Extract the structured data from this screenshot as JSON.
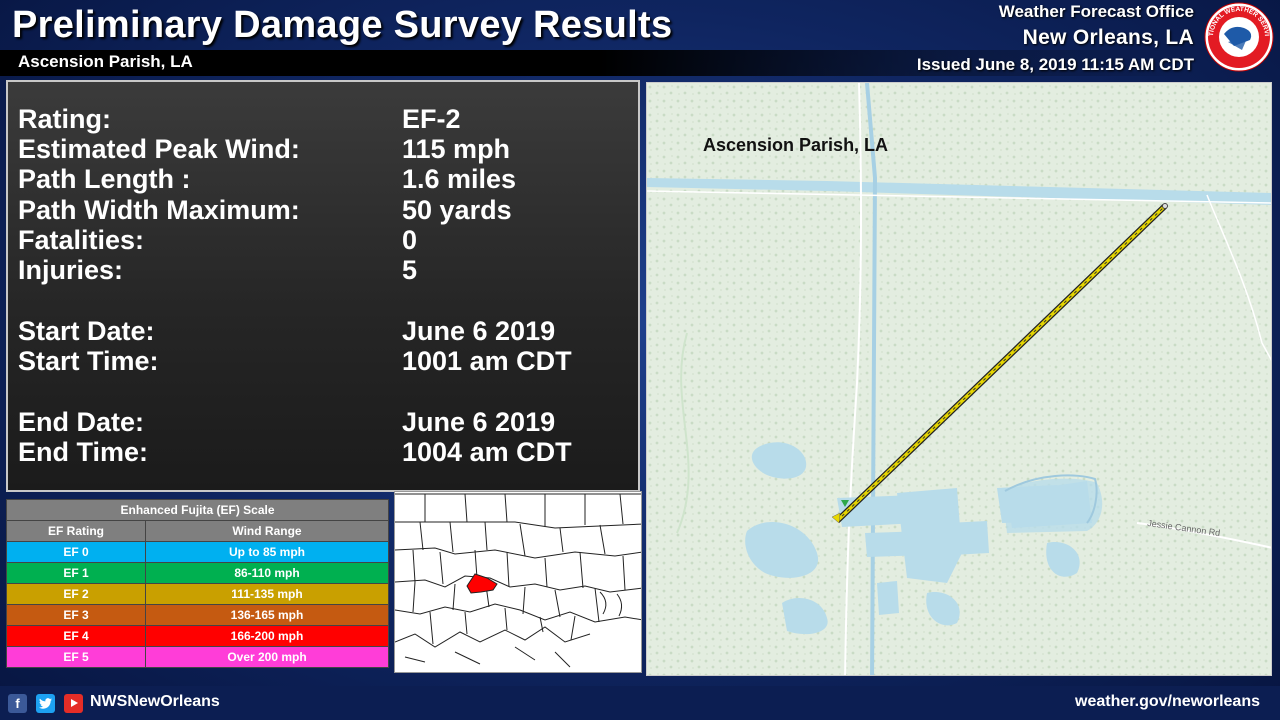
{
  "header": {
    "title": "Preliminary Damage Survey Results",
    "subtitle": "Ascension Parish, LA",
    "office_line1": "Weather Forecast Office",
    "office_line2": "New Orleans, LA",
    "issued": "Issued June 8, 2019 11:15 AM CDT",
    "logo_text": "NATIONAL WEATHER SERVICE"
  },
  "summary": {
    "rows": [
      {
        "label": "Rating:",
        "value": "EF-2"
      },
      {
        "label": "Estimated Peak Wind:",
        "value": "115 mph"
      },
      {
        "label": "Path Length :",
        "value": "1.6 miles"
      },
      {
        "label": "Path Width Maximum:",
        "value": "50 yards"
      },
      {
        "label": "Fatalities:",
        "value": "0"
      },
      {
        "label": "Injuries:",
        "value": "5"
      },
      {
        "label": "Start Date:",
        "value": "June 6 2019"
      },
      {
        "label": "Start Time:",
        "value": "1001 am CDT"
      },
      {
        "label": "End Date:",
        "value": "June 6 2019"
      },
      {
        "label": "End Time:",
        "value": "1004 am CDT"
      }
    ]
  },
  "ef_scale": {
    "title": "Enhanced Fujita (EF) Scale",
    "col_rating": "EF Rating",
    "col_wind": "Wind Range",
    "rows": [
      {
        "rating": "EF 0",
        "range": "Up to 85 mph",
        "color": "#00b0f0"
      },
      {
        "rating": "EF 1",
        "range": "86-110 mph",
        "color": "#00b050"
      },
      {
        "rating": "EF 2",
        "range": "111-135 mph",
        "color": "#c9a000"
      },
      {
        "rating": "EF 3",
        "range": "136-165 mph",
        "color": "#c55a11"
      },
      {
        "rating": "EF 4",
        "range": "166-200 mph",
        "color": "#ff0000"
      },
      {
        "rating": "EF 5",
        "range": "Over 200 mph",
        "color": "#ff3dd8"
      }
    ]
  },
  "map": {
    "label": "Ascension Parish, LA",
    "road_label": "Jessie Cannon Rd",
    "track_color": "#e5d500"
  },
  "inset": {
    "highlight_color": "#ff0000"
  },
  "footer": {
    "handle": "NWSNewOrleans",
    "url": "weather.gov/neworleans"
  }
}
